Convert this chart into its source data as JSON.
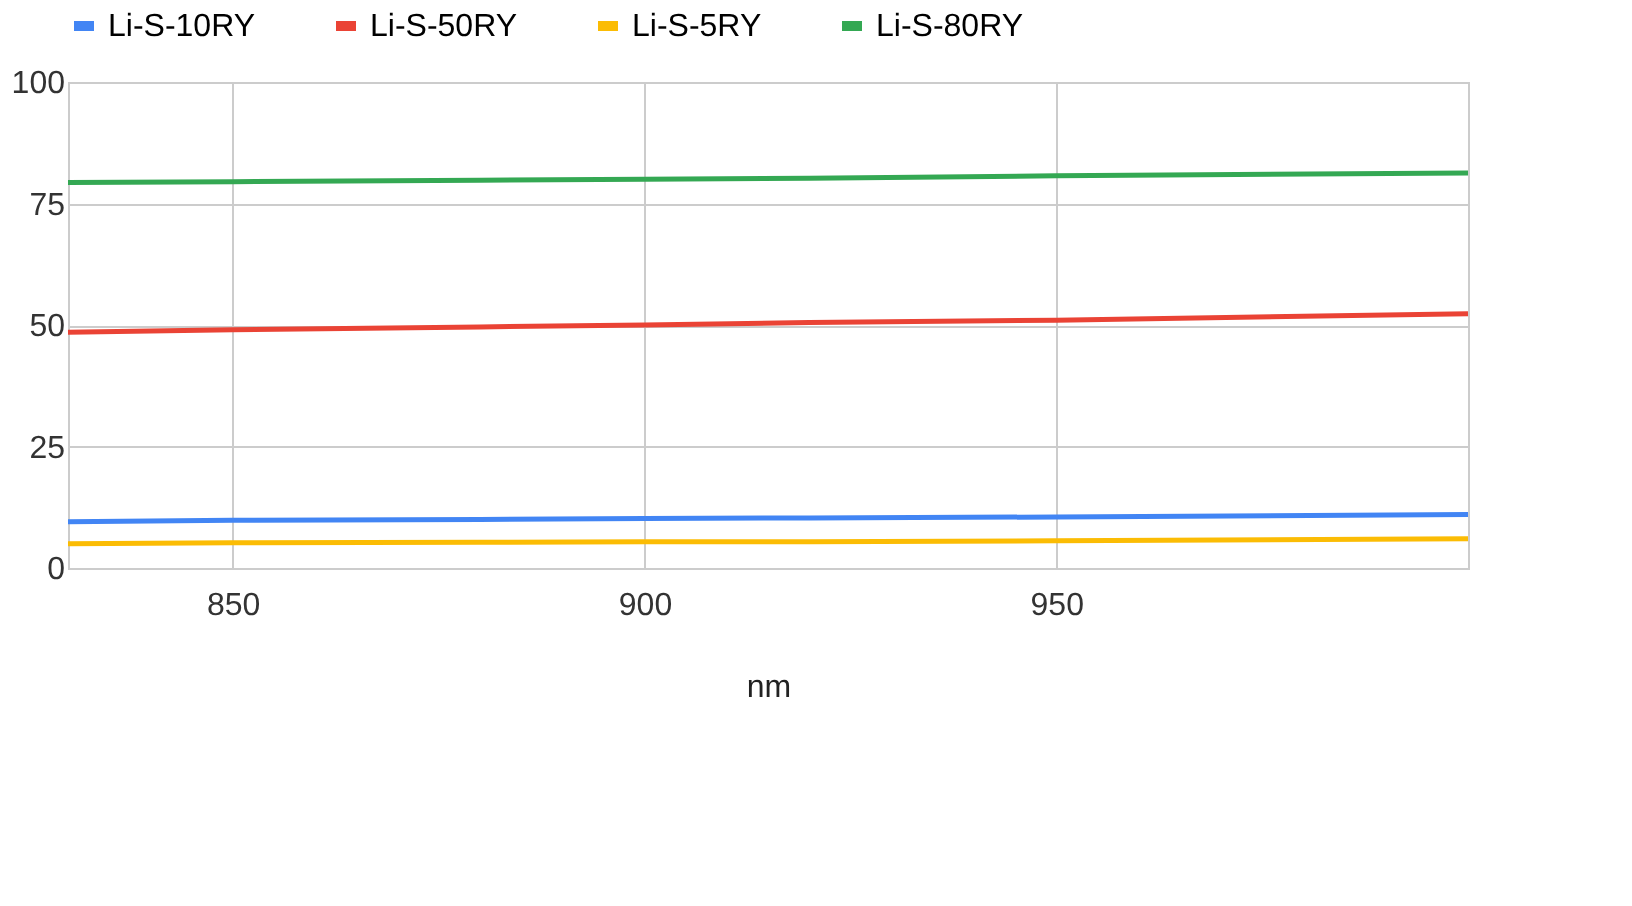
{
  "chart_data": {
    "type": "line",
    "xlabel": "nm",
    "x": [
      830,
      850,
      880,
      900,
      920,
      950,
      1000
    ],
    "series": [
      {
        "name": "Li-S-10RY",
        "color": "#4285f4",
        "values": [
          9.5,
          9.8,
          10.0,
          10.2,
          10.3,
          10.5,
          11.0
        ]
      },
      {
        "name": "Li-S-50RY",
        "color": "#ea4335",
        "values": [
          48.5,
          49.0,
          49.6,
          50.0,
          50.5,
          51.0,
          52.3
        ]
      },
      {
        "name": "Li-S-5RY",
        "color": "#fbbc04",
        "values": [
          5.0,
          5.2,
          5.3,
          5.4,
          5.4,
          5.6,
          6.0
        ]
      },
      {
        "name": "Li-S-80RY",
        "color": "#34a853",
        "values": [
          79.3,
          79.5,
          79.8,
          80.0,
          80.2,
          80.7,
          81.3
        ]
      }
    ],
    "xlim": [
      830,
      1000
    ],
    "xticks": [
      850,
      900,
      950
    ],
    "ylim": [
      0,
      100
    ],
    "yticks": [
      0,
      25,
      50,
      75,
      100
    ],
    "grid": true,
    "legend": "top",
    "marker": "none",
    "line_style": "solid"
  }
}
